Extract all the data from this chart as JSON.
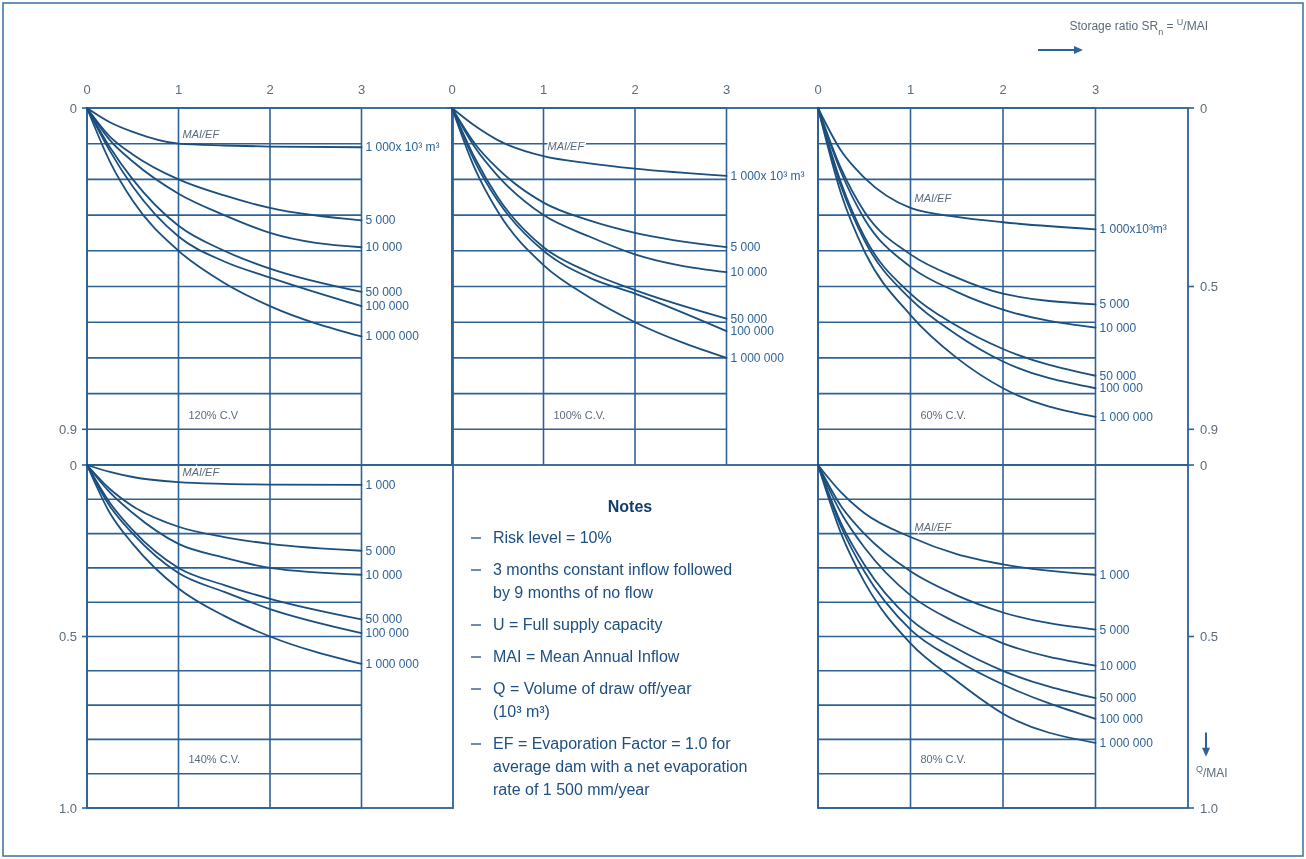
{
  "chart_data": [
    {
      "type": "line",
      "subtitle": "120% C.V",
      "xlim": [
        0,
        4
      ],
      "xticks": [
        0,
        1,
        2,
        3
      ],
      "ylim": [
        1,
        0
      ],
      "yticks": [
        0,
        {
          "value": 0.1,
          "label": null
        },
        {
          "value": 0.2,
          "label": null
        },
        {
          "value": 0.3,
          "label": null
        },
        {
          "value": 0.4,
          "label": null
        },
        {
          "value": 0.5,
          "label": null
        },
        {
          "value": 0.6,
          "label": null
        },
        {
          "value": 0.7,
          "label": null
        },
        {
          "value": 0.8,
          "label": null
        },
        0.9
      ],
      "grid": true,
      "x": [
        0,
        0.25,
        0.5,
        1,
        1.5,
        2,
        3
      ],
      "annotations": [
        "MAI/EF"
      ],
      "series": [
        {
          "name": "1 000x 10³ m³",
          "color": "#1b4f7e",
          "values": [
            0,
            0.04,
            0.067,
            0.1,
            0.105,
            0.108,
            0.11
          ]
        },
        {
          "name": "5 000",
          "color": "#1b4f7e",
          "values": [
            0,
            0.08,
            0.13,
            0.2,
            0.245,
            0.28,
            0.315
          ]
        },
        {
          "name": "10 000",
          "color": "#1b4f7e",
          "values": [
            0,
            0.09,
            0.15,
            0.24,
            0.3,
            0.35,
            0.39
          ]
        },
        {
          "name": "50 000",
          "color": "#1b4f7e",
          "values": [
            0,
            0.11,
            0.2,
            0.33,
            0.4,
            0.45,
            0.515
          ]
        },
        {
          "name": "100 000",
          "color": "#1b4f7e",
          "values": [
            0,
            0.12,
            0.22,
            0.36,
            0.43,
            0.475,
            0.555
          ]
        },
        {
          "name": "1 000 000",
          "color": "#1b4f7e",
          "values": [
            0,
            0.15,
            0.26,
            0.4,
            0.49,
            0.555,
            0.64
          ]
        }
      ]
    },
    {
      "type": "line",
      "subtitle": "100% C.V.",
      "xlim": [
        0,
        4
      ],
      "xticks": [
        0,
        1,
        2,
        3
      ],
      "ylim": [
        1,
        0
      ],
      "yticks": [
        0,
        {
          "value": 0.1,
          "label": null
        },
        {
          "value": 0.2,
          "label": null
        },
        {
          "value": 0.3,
          "label": null
        },
        {
          "value": 0.4,
          "label": null
        },
        {
          "value": 0.5,
          "label": null
        },
        {
          "value": 0.6,
          "label": null
        },
        {
          "value": 0.7,
          "label": null
        },
        {
          "value": 0.8,
          "label": null
        },
        {
          "value": 0.9,
          "label": null
        }
      ],
      "grid": true,
      "tick_labels": "x",
      "x": [
        0,
        0.25,
        0.5,
        1,
        1.5,
        2,
        3
      ],
      "annotations": [
        "MAI/EF"
      ],
      "series": [
        {
          "name": "1 000x 10³ m³",
          "color": "#1b4f7e",
          "values": [
            0,
            0.05,
            0.09,
            0.135,
            0.155,
            0.17,
            0.19
          ]
        },
        {
          "name": "5 000",
          "color": "#1b4f7e",
          "values": [
            0,
            0.1,
            0.17,
            0.265,
            0.315,
            0.35,
            0.39
          ]
        },
        {
          "name": "10 000",
          "color": "#1b4f7e",
          "values": [
            0,
            0.11,
            0.19,
            0.3,
            0.36,
            0.41,
            0.46
          ]
        },
        {
          "name": "50 000",
          "color": "#1b4f7e",
          "values": [
            0,
            0.14,
            0.25,
            0.39,
            0.46,
            0.51,
            0.59
          ]
        },
        {
          "name": "100 000",
          "color": "#1b4f7e",
          "values": [
            0,
            0.15,
            0.26,
            0.4,
            0.475,
            0.52,
            0.625
          ]
        },
        {
          "name": "1 000 000",
          "color": "#1b4f7e",
          "values": [
            0,
            0.17,
            0.29,
            0.44,
            0.53,
            0.6,
            0.7
          ]
        }
      ]
    },
    {
      "type": "line",
      "subtitle": "60% C.V.",
      "xlabel": "Storage ratio SR$_{n}$ = $^{U}$/MAI",
      "xlim": [
        0,
        4
      ],
      "xticks": [
        0,
        1,
        2,
        3
      ],
      "y2lim": [
        1,
        0
      ],
      "y2ticks": [
        0,
        {
          "value": 0.1,
          "label": null
        },
        {
          "value": 0.2,
          "label": null
        },
        {
          "value": 0.3,
          "label": null
        },
        {
          "value": 0.4,
          "label": null
        },
        0.5,
        {
          "value": 0.6,
          "label": null
        },
        {
          "value": 0.7,
          "label": null
        },
        {
          "value": 0.8,
          "label": null
        },
        0.9
      ],
      "grid": true,
      "x": [
        0,
        0.25,
        0.5,
        1,
        1.5,
        2,
        3
      ],
      "annotations": [
        "MAI/EF"
      ],
      "series": [
        {
          "name": "1 000x10³m³",
          "axis": "y2",
          "color": "#1b4f7e",
          "values": [
            0,
            0.12,
            0.195,
            0.28,
            0.305,
            0.32,
            0.34
          ]
        },
        {
          "name": "5 000",
          "axis": "y2",
          "color": "#1b4f7e",
          "values": [
            0,
            0.17,
            0.29,
            0.41,
            0.475,
            0.52,
            0.55
          ]
        },
        {
          "name": "10 000",
          "axis": "y2",
          "color": "#1b4f7e",
          "values": [
            0,
            0.18,
            0.31,
            0.445,
            0.515,
            0.565,
            0.615
          ]
        },
        {
          "name": "50 000",
          "axis": "y2",
          "color": "#1b4f7e",
          "values": [
            0,
            0.21,
            0.36,
            0.52,
            0.61,
            0.675,
            0.75
          ]
        },
        {
          "name": "100 000",
          "axis": "y2",
          "color": "#1b4f7e",
          "values": [
            0,
            0.22,
            0.37,
            0.535,
            0.635,
            0.71,
            0.785
          ]
        },
        {
          "name": "1 000 000",
          "axis": "y2",
          "color": "#1b4f7e",
          "values": [
            0,
            0.24,
            0.4,
            0.58,
            0.7,
            0.785,
            0.865
          ]
        }
      ]
    },
    {
      "type": "line",
      "subtitle": "140% C.V.",
      "xlim": [
        0,
        4
      ],
      "xticks": [
        0,
        1,
        2,
        3
      ],
      "ylim": [
        1,
        0
      ],
      "yticks": [
        0,
        {
          "value": 0.1,
          "label": null
        },
        {
          "value": 0.2,
          "label": null
        },
        {
          "value": 0.3,
          "label": null
        },
        {
          "value": 0.4,
          "label": null
        },
        0.5,
        {
          "value": 0.6,
          "label": null
        },
        {
          "value": 0.7,
          "label": null
        },
        {
          "value": 0.8,
          "label": null
        },
        {
          "value": 0.9,
          "label": null
        },
        {
          "value": 1,
          "label": "1.0"
        }
      ],
      "grid": true,
      "tick_labels": "y",
      "x": [
        0,
        0.25,
        0.5,
        1,
        1.5,
        2,
        3
      ],
      "annotations": [
        "MAI/EF"
      ],
      "series": [
        {
          "name": "1 000",
          "color": "#1b4f7e",
          "values": [
            0,
            0.02,
            0.035,
            0.05,
            0.055,
            0.057,
            0.058
          ]
        },
        {
          "name": "5 000",
          "color": "#1b4f7e",
          "values": [
            0,
            0.07,
            0.12,
            0.18,
            0.21,
            0.23,
            0.25
          ]
        },
        {
          "name": "10 000",
          "color": "#1b4f7e",
          "values": [
            0,
            0.08,
            0.14,
            0.23,
            0.27,
            0.3,
            0.32
          ]
        },
        {
          "name": "50 000",
          "color": "#1b4f7e",
          "values": [
            0,
            0.11,
            0.19,
            0.3,
            0.35,
            0.39,
            0.45
          ]
        },
        {
          "name": "100 000",
          "color": "#1b4f7e",
          "values": [
            0,
            0.12,
            0.2,
            0.315,
            0.37,
            0.42,
            0.49
          ]
        },
        {
          "name": "1 000 000",
          "color": "#1b4f7e",
          "values": [
            0,
            0.14,
            0.23,
            0.36,
            0.44,
            0.5,
            0.58
          ]
        }
      ]
    },
    {
      "type": "other",
      "title": "Notes",
      "annotations": [
        "Risk level = 10%",
        "3 months constant inflow followed by 9 months of no flow",
        "U = Full supply capacity",
        "MAI = Mean Annual Inflow",
        "Q = Volume of draw off/year (10³ m³)",
        "EF = Evaporation Factor = 1.0 for average dam with a net evaporation rate of 1 500 mm/year"
      ]
    },
    {
      "type": "line",
      "subtitle": "80% C.V.",
      "y2label": "$^{Q}$/MAI",
      "xlim": [
        0,
        4
      ],
      "xticks": [
        0,
        1,
        2,
        3
      ],
      "y2lim": [
        1,
        0
      ],
      "y2ticks": [
        0,
        {
          "value": 0.1,
          "label": null
        },
        {
          "value": 0.2,
          "label": null
        },
        {
          "value": 0.3,
          "label": null
        },
        {
          "value": 0.4,
          "label": null
        },
        0.5,
        {
          "value": 0.6,
          "label": null
        },
        {
          "value": 0.7,
          "label": null
        },
        {
          "value": 0.8,
          "label": null
        },
        {
          "value": 0.9,
          "label": null
        },
        {
          "value": 1,
          "label": "1.0"
        }
      ],
      "grid": true,
      "tick_labels": "y",
      "x": [
        0,
        0.25,
        0.5,
        1,
        1.5,
        2,
        3
      ],
      "annotations": [
        "MAI/EF"
      ],
      "series": [
        {
          "name": "1 000",
          "axis": "y2",
          "color": "#1b4f7e",
          "values": [
            0,
            0.08,
            0.14,
            0.21,
            0.26,
            0.29,
            0.32
          ]
        },
        {
          "name": "5 000",
          "axis": "y2",
          "color": "#1b4f7e",
          "values": [
            0,
            0.12,
            0.2,
            0.31,
            0.38,
            0.43,
            0.48
          ]
        },
        {
          "name": "10 000",
          "axis": "y2",
          "color": "#1b4f7e",
          "values": [
            0,
            0.14,
            0.24,
            0.38,
            0.46,
            0.52,
            0.585
          ]
        },
        {
          "name": "50 000",
          "axis": "y2",
          "color": "#1b4f7e",
          "values": [
            0,
            0.17,
            0.29,
            0.45,
            0.535,
            0.6,
            0.68
          ]
        },
        {
          "name": "100 000",
          "axis": "y2",
          "color": "#1b4f7e",
          "values": [
            0,
            0.18,
            0.31,
            0.48,
            0.57,
            0.64,
            0.74
          ]
        },
        {
          "name": "1 000 000",
          "axis": "y2",
          "color": "#1b4f7e",
          "values": [
            0,
            0.2,
            0.34,
            0.52,
            0.63,
            0.725,
            0.81
          ]
        }
      ]
    }
  ]
}
